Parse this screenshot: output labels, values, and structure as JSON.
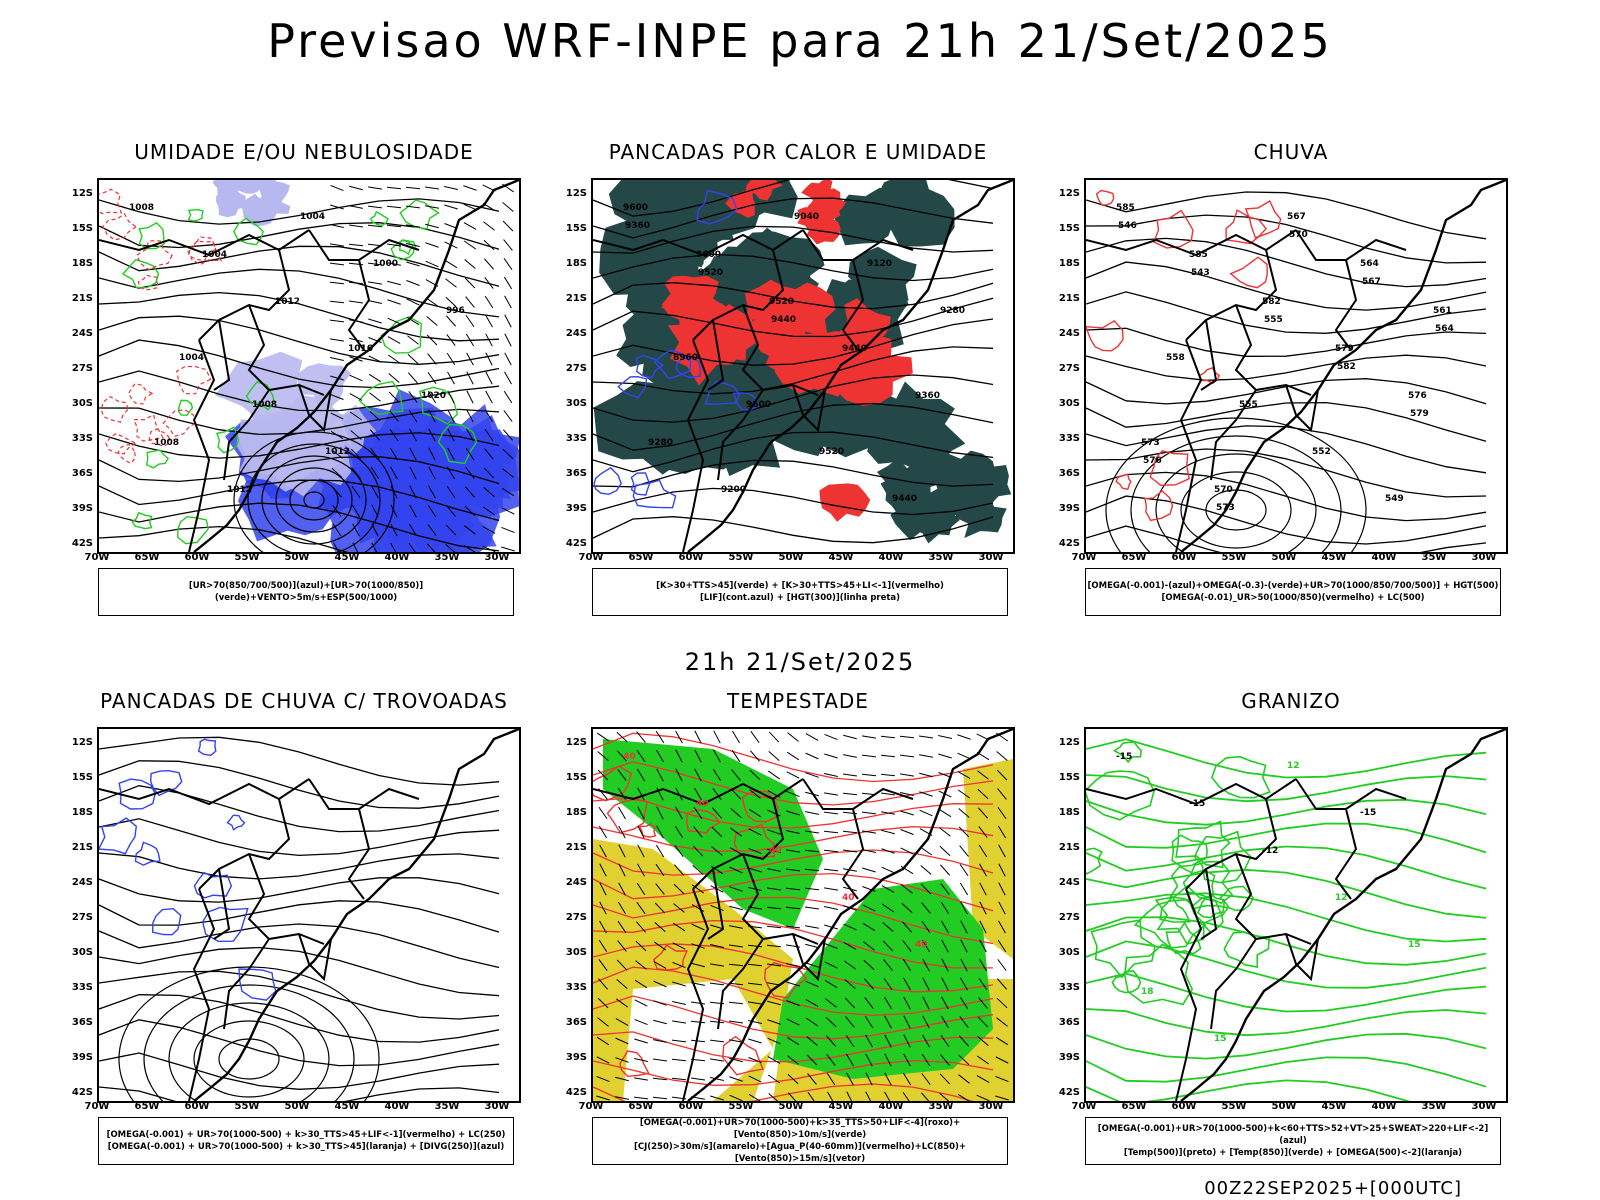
{
  "main_title": "Previsao WRF-INPE  para 21h 21/Set/2025",
  "subtitle": "21h 21/Set/2025",
  "footer": "00Z22SEP2025+[000UTC]",
  "axes": {
    "lat": [
      "12S",
      "15S",
      "18S",
      "21S",
      "24S",
      "27S",
      "30S",
      "33S",
      "36S",
      "39S",
      "42S"
    ],
    "lon": [
      "70W",
      "65W",
      "60W",
      "55W",
      "50W",
      "45W",
      "40W",
      "35W",
      "30W"
    ]
  },
  "panels": [
    {
      "title": "UMIDADE E/OU NEBULOSIDADE",
      "legend": [
        "[UR>70(850/700/500)](azul)+[UR>70(1000/850)](verde)+VENTO>5m/s+ESP(500/1000)"
      ],
      "labels": [
        "1008",
        "1004",
        "1012",
        "1016",
        "1020",
        "1008",
        "1012",
        "1004",
        "1000",
        "996",
        "1004",
        "1008",
        "1012"
      ]
    },
    {
      "title": "PANCADAS POR CALOR E UMIDADE",
      "legend": [
        "[K>30+TTS>45](verde) + [K>30+TTS>45+LI<-1](vermelho)",
        "[LIF](cont.azul) + [HGT(300)](linha preta)"
      ],
      "labels": [
        "9600",
        "9600",
        "9520",
        "9440",
        "9360",
        "9280",
        "9200",
        "9040",
        "9120",
        "9280",
        "8960",
        "9600",
        "9520",
        "9440",
        "9360",
        "9520",
        "9440"
      ]
    },
    {
      "title": "CHUVA",
      "legend": [
        "[OMEGA(-0.001)-(azul)+OMEGA(-0.3)-(verde)+UR>70(1000/850/700/500)] + HGT(500)",
        "[OMEGA(-0.01)_UR>50(1000/850)(vermelho) + LC(500)"
      ],
      "labels": [
        "585",
        "585",
        "582",
        "579",
        "576",
        "573",
        "570",
        "567",
        "564",
        "561",
        "558",
        "555",
        "552",
        "549",
        "546",
        "543",
        "555",
        "582",
        "579",
        "576",
        "573",
        "570",
        "567",
        "564"
      ]
    },
    {
      "title": "PANCADAS DE CHUVA C/ TROVOADAS",
      "legend": [
        "[OMEGA(-0.001) + UR>70(1000-500) + k>30_TTS>45+LIF<-1](vermelho) + LC(250)",
        "[OMEGA(-0.001) + UR>70(1000-500) + k>30_TTS>45](laranja) + [DIVG(250)](azul)"
      ],
      "labels": []
    },
    {
      "title": "TEMPESTADE",
      "legend": [
        "[OMEGA(-0.001)+UR>70(1000-500)+k>35_TTS>50+LIF<-4](roxo)+[Vento(850)>10m/s](verde)",
        "[CJ(250)>30m/s](amarelo)+[Agua_P(40-60mm)](vermelho)+LC(850)+[Vento(850)>15m/s](vetor)"
      ],
      "labels": [
        "40",
        "40",
        "40",
        "40",
        "40"
      ]
    },
    {
      "title": "GRANIZO",
      "legend": [
        "[OMEGA(-0.001)+UR>70(1000-500)+k<60+TTS>52+VT>25+SWEAT>220+LIF<-2](azul)",
        "[Temp(500)](preto) + [Temp(850)](verde) + [OMEGA(500)<-2](laranja)"
      ],
      "labels": [
        "-15",
        "-15",
        "-12",
        "12",
        "15",
        "18",
        "15",
        "12",
        "-15"
      ]
    }
  ],
  "colors": {
    "green": "#22cc22",
    "blue": "#3344ee",
    "red": "#ee3333",
    "dark_teal": "#244848",
    "yellow": "#e0d030",
    "lavender": "#b8b8f0"
  }
}
